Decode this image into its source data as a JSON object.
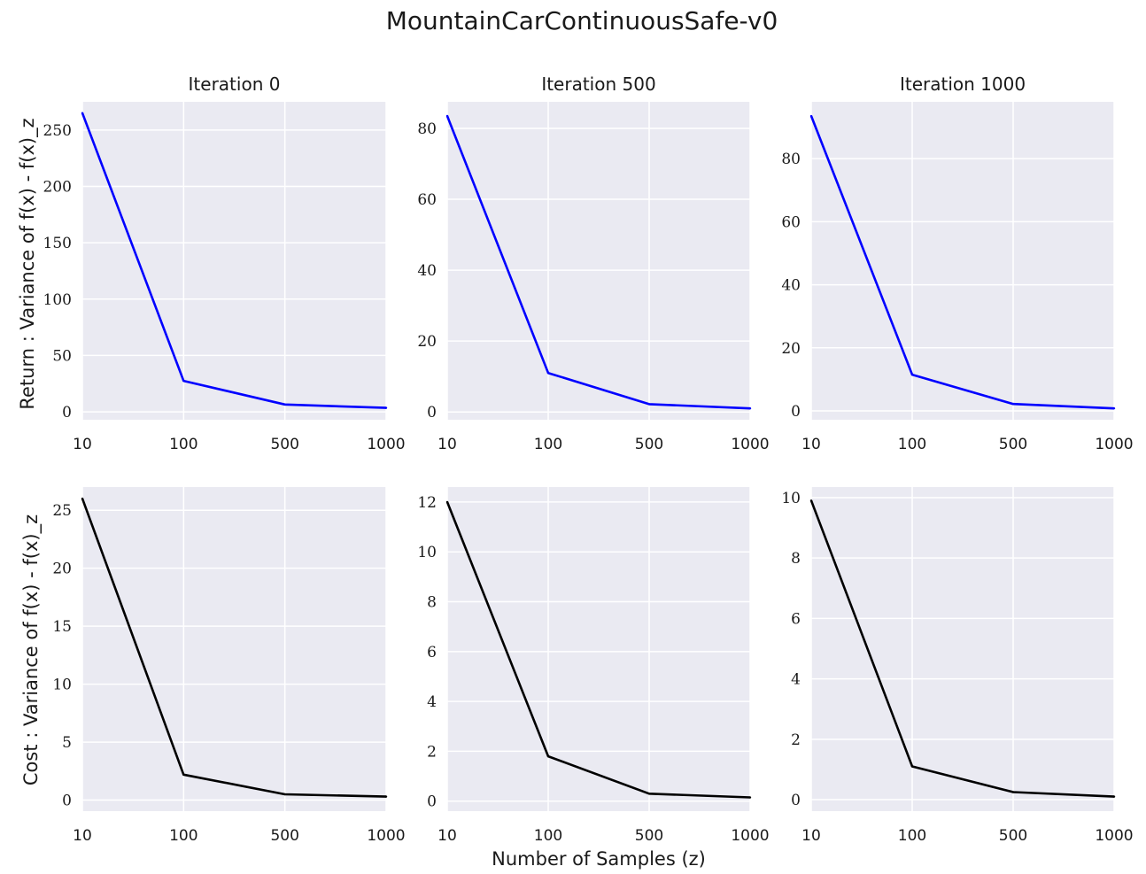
{
  "figure": {
    "title": "MountainCarContinuousSafe-v0",
    "xlabel": "Number of Samples (z)",
    "row_ylabels": [
      "Return :  Variance of f(x) - f(x)_z",
      "Cost :  Variance of f(x) - f(x)_z"
    ],
    "background_color": "#eaeaf2",
    "grid_color": "#ffffff"
  },
  "chart_data": [
    {
      "type": "line",
      "title": "Iteration 0",
      "categories": [
        "10",
        "100",
        "500",
        "1000"
      ],
      "series": [
        {
          "values": [
            265,
            27.5,
            6.5,
            3.5
          ],
          "color": "#0000ff"
        }
      ],
      "yticks": [
        0,
        50,
        100,
        150,
        200,
        250
      ],
      "ylim": [
        -7,
        275
      ],
      "grid": true
    },
    {
      "type": "line",
      "title": "Iteration 500",
      "categories": [
        "10",
        "100",
        "500",
        "1000"
      ],
      "series": [
        {
          "values": [
            83.5,
            11,
            2.2,
            1.0
          ],
          "color": "#0000ff"
        }
      ],
      "yticks": [
        0,
        20,
        40,
        60,
        80
      ],
      "ylim": [
        -2.2,
        87.5
      ],
      "grid": true
    },
    {
      "type": "line",
      "title": "Iteration 1000",
      "categories": [
        "10",
        "100",
        "500",
        "1000"
      ],
      "series": [
        {
          "values": [
            93.5,
            11.5,
            2.2,
            0.8
          ],
          "color": "#0000ff"
        }
      ],
      "yticks": [
        0,
        20,
        40,
        60,
        80
      ],
      "ylim": [
        -2.8,
        98
      ],
      "grid": true
    },
    {
      "type": "line",
      "title": "",
      "categories": [
        "10",
        "100",
        "500",
        "1000"
      ],
      "series": [
        {
          "values": [
            26,
            2.2,
            0.5,
            0.3
          ],
          "color": "#000000"
        }
      ],
      "yticks": [
        0,
        5,
        10,
        15,
        20,
        25
      ],
      "ylim": [
        -0.95,
        27
      ],
      "grid": true
    },
    {
      "type": "line",
      "title": "",
      "categories": [
        "10",
        "100",
        "500",
        "1000"
      ],
      "series": [
        {
          "values": [
            12,
            1.8,
            0.3,
            0.15
          ],
          "color": "#000000"
        }
      ],
      "yticks": [
        0,
        2,
        4,
        6,
        8,
        10,
        12
      ],
      "ylim": [
        -0.4,
        12.6
      ],
      "grid": true
    },
    {
      "type": "line",
      "title": "",
      "categories": [
        "10",
        "100",
        "500",
        "1000"
      ],
      "series": [
        {
          "values": [
            9.9,
            1.1,
            0.25,
            0.1
          ],
          "color": "#000000"
        }
      ],
      "yticks": [
        0,
        2,
        4,
        6,
        8,
        10
      ],
      "ylim": [
        -0.38,
        10.35
      ],
      "grid": true
    }
  ]
}
